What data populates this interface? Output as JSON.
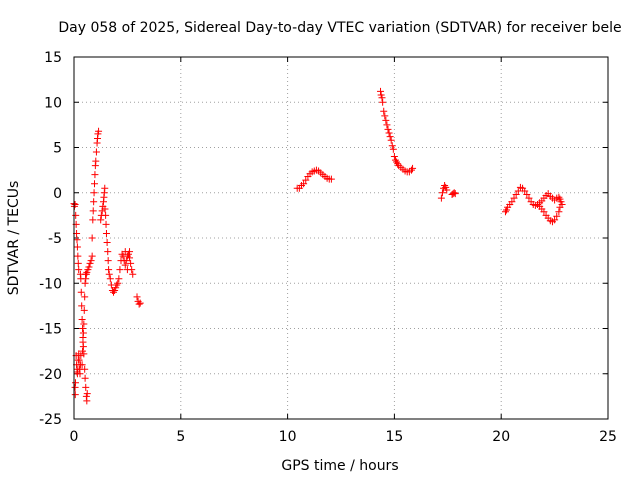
{
  "chart_data": {
    "type": "scatter",
    "title": "Day 058 of 2025, Sidereal Day-to-day VTEC variation (SDTVAR) for receiver bele",
    "xlabel": "GPS time / hours",
    "ylabel": "SDTVAR / TECUs",
    "xlim": [
      0,
      25
    ],
    "ylim": [
      -25,
      15
    ],
    "x_ticks": [
      0,
      5,
      10,
      15,
      20,
      25
    ],
    "y_ticks": [
      -25,
      -20,
      -15,
      -10,
      -5,
      0,
      5,
      10,
      15
    ],
    "grid": true,
    "marker": "+",
    "color": "#ff0000",
    "series": [
      {
        "name": "SDTVAR",
        "points": [
          [
            0.0,
            -1.2
          ],
          [
            0.02,
            -1.5
          ],
          [
            0.05,
            -1.3
          ],
          [
            0.05,
            -21.5
          ],
          [
            0.06,
            -22.3
          ],
          [
            0.07,
            -21.0
          ],
          [
            0.08,
            -2.5
          ],
          [
            0.1,
            -3.5
          ],
          [
            0.12,
            -4.5
          ],
          [
            0.14,
            -5.2
          ],
          [
            0.16,
            -6.0
          ],
          [
            0.18,
            -7.0
          ],
          [
            0.2,
            -7.8
          ],
          [
            0.22,
            -8.5
          ],
          [
            0.1,
            -18.0
          ],
          [
            0.12,
            -19.0
          ],
          [
            0.14,
            -19.8
          ],
          [
            0.16,
            -20.0
          ],
          [
            0.18,
            -19.5
          ],
          [
            0.2,
            -18.5
          ],
          [
            0.22,
            -17.8
          ],
          [
            0.24,
            -18.5
          ],
          [
            0.26,
            -19.5
          ],
          [
            0.28,
            -20.0
          ],
          [
            0.3,
            -19.0
          ],
          [
            0.32,
            -18.0
          ],
          [
            0.3,
            -9.0
          ],
          [
            0.32,
            -9.5
          ],
          [
            0.34,
            -11.0
          ],
          [
            0.36,
            -12.5
          ],
          [
            0.38,
            -14.0
          ],
          [
            0.4,
            -15.0
          ],
          [
            0.42,
            -16.0
          ],
          [
            0.44,
            -17.0
          ],
          [
            0.46,
            -17.8
          ],
          [
            0.38,
            -19.0
          ],
          [
            0.4,
            -17.5
          ],
          [
            0.42,
            -16.5
          ],
          [
            0.44,
            -15.5
          ],
          [
            0.46,
            -14.5
          ],
          [
            0.48,
            -13.0
          ],
          [
            0.5,
            -11.5
          ],
          [
            0.52,
            -10.0
          ],
          [
            0.54,
            -9.0
          ],
          [
            0.5,
            -19.5
          ],
          [
            0.52,
            -20.5
          ],
          [
            0.55,
            -21.5
          ],
          [
            0.58,
            -22.5
          ],
          [
            0.6,
            -23.0
          ],
          [
            0.62,
            -22.2
          ],
          [
            0.55,
            -9.5
          ],
          [
            0.58,
            -9.0
          ],
          [
            0.6,
            -8.8
          ],
          [
            0.65,
            -8.5
          ],
          [
            0.7,
            -8.2
          ],
          [
            0.75,
            -7.8
          ],
          [
            0.8,
            -7.5
          ],
          [
            0.85,
            -7.0
          ],
          [
            0.85,
            -5.0
          ],
          [
            0.88,
            -3.0
          ],
          [
            0.9,
            -2.0
          ],
          [
            0.92,
            -1.0
          ],
          [
            0.94,
            0.0
          ],
          [
            0.96,
            1.0
          ],
          [
            0.98,
            2.0
          ],
          [
            1.0,
            3.0
          ],
          [
            1.02,
            3.5
          ],
          [
            1.05,
            4.5
          ],
          [
            1.08,
            5.5
          ],
          [
            1.1,
            6.0
          ],
          [
            1.12,
            6.5
          ],
          [
            1.15,
            6.8
          ],
          [
            1.25,
            -3.0
          ],
          [
            1.28,
            -2.5
          ],
          [
            1.32,
            -2.0
          ],
          [
            1.35,
            -1.5
          ],
          [
            1.38,
            -1.0
          ],
          [
            1.4,
            -0.5
          ],
          [
            1.42,
            0.0
          ],
          [
            1.44,
            0.5
          ],
          [
            1.45,
            -1.8
          ],
          [
            1.48,
            -2.5
          ],
          [
            1.5,
            -3.5
          ],
          [
            1.52,
            -4.5
          ],
          [
            1.55,
            -5.5
          ],
          [
            1.58,
            -6.5
          ],
          [
            1.6,
            -7.5
          ],
          [
            1.62,
            -8.5
          ],
          [
            1.65,
            -9.0
          ],
          [
            1.7,
            -9.5
          ],
          [
            1.75,
            -10.2
          ],
          [
            1.8,
            -10.8
          ],
          [
            1.85,
            -11.0
          ],
          [
            1.9,
            -10.8
          ],
          [
            1.95,
            -10.5
          ],
          [
            2.0,
            -10.2
          ],
          [
            2.05,
            -10.0
          ],
          [
            2.1,
            -9.5
          ],
          [
            2.15,
            -8.5
          ],
          [
            2.2,
            -7.5
          ],
          [
            2.25,
            -6.8
          ],
          [
            2.3,
            -7.0
          ],
          [
            2.35,
            -7.5
          ],
          [
            2.4,
            -8.0
          ],
          [
            2.45,
            -7.5
          ],
          [
            2.5,
            -7.0
          ],
          [
            2.55,
            -6.8
          ],
          [
            2.6,
            -7.2
          ],
          [
            2.65,
            -7.8
          ],
          [
            2.7,
            -8.5
          ],
          [
            2.75,
            -9.0
          ],
          [
            2.5,
            -8.5
          ],
          [
            2.4,
            -6.5
          ],
          [
            2.6,
            -6.5
          ],
          [
            2.95,
            -11.5
          ],
          [
            3.0,
            -12.0
          ],
          [
            3.05,
            -12.3
          ],
          [
            3.1,
            -12.2
          ],
          [
            10.45,
            0.5
          ],
          [
            10.55,
            0.5
          ],
          [
            10.65,
            0.8
          ],
          [
            10.75,
            1.0
          ],
          [
            10.85,
            1.4
          ],
          [
            10.95,
            1.8
          ],
          [
            11.05,
            2.1
          ],
          [
            11.15,
            2.3
          ],
          [
            11.25,
            2.4
          ],
          [
            11.35,
            2.5
          ],
          [
            11.45,
            2.4
          ],
          [
            11.55,
            2.2
          ],
          [
            11.65,
            2.0
          ],
          [
            11.75,
            1.8
          ],
          [
            11.85,
            1.6
          ],
          [
            11.95,
            1.5
          ],
          [
            12.05,
            1.5
          ],
          [
            14.35,
            11.2
          ],
          [
            14.38,
            10.8
          ],
          [
            14.42,
            10.5
          ],
          [
            14.45,
            10.0
          ],
          [
            14.5,
            9.0
          ],
          [
            14.55,
            8.5
          ],
          [
            14.6,
            8.0
          ],
          [
            14.65,
            7.5
          ],
          [
            14.7,
            7.0
          ],
          [
            14.75,
            6.6
          ],
          [
            14.8,
            6.2
          ],
          [
            14.85,
            5.8
          ],
          [
            14.9,
            5.2
          ],
          [
            14.95,
            4.8
          ],
          [
            15.0,
            4.0
          ],
          [
            15.05,
            3.6
          ],
          [
            15.1,
            3.4
          ],
          [
            15.15,
            3.2
          ],
          [
            15.2,
            3.0
          ],
          [
            15.3,
            2.8
          ],
          [
            15.4,
            2.6
          ],
          [
            15.5,
            2.4
          ],
          [
            15.6,
            2.3
          ],
          [
            15.7,
            2.3
          ],
          [
            15.8,
            2.5
          ],
          [
            15.85,
            2.7
          ],
          [
            17.2,
            -0.6
          ],
          [
            17.25,
            0.0
          ],
          [
            17.3,
            0.5
          ],
          [
            17.35,
            0.8
          ],
          [
            17.4,
            0.6
          ],
          [
            17.45,
            0.3
          ],
          [
            17.7,
            -0.2
          ],
          [
            17.75,
            -0.1
          ],
          [
            17.8,
            0.0
          ],
          [
            17.85,
            -0.1
          ],
          [
            20.2,
            -2.1
          ],
          [
            20.25,
            -1.9
          ],
          [
            20.3,
            -1.6
          ],
          [
            20.4,
            -1.3
          ],
          [
            20.5,
            -1.0
          ],
          [
            20.6,
            -0.6
          ],
          [
            20.7,
            -0.2
          ],
          [
            20.8,
            0.2
          ],
          [
            20.9,
            0.6
          ],
          [
            21.0,
            0.5
          ],
          [
            21.1,
            0.2
          ],
          [
            21.2,
            -0.2
          ],
          [
            21.3,
            -0.6
          ],
          [
            21.4,
            -1.0
          ],
          [
            21.5,
            -1.3
          ],
          [
            21.6,
            -1.4
          ],
          [
            21.7,
            -1.3
          ],
          [
            21.8,
            -1.1
          ],
          [
            21.9,
            -0.9
          ],
          [
            22.0,
            -0.6
          ],
          [
            22.1,
            -0.3
          ],
          [
            22.2,
            -0.1
          ],
          [
            22.3,
            -0.4
          ],
          [
            22.4,
            -0.6
          ],
          [
            22.5,
            -0.8
          ],
          [
            22.6,
            -0.6
          ],
          [
            22.7,
            -0.5
          ],
          [
            22.75,
            -0.7
          ],
          [
            22.8,
            -1.0
          ],
          [
            22.85,
            -1.3
          ],
          [
            22.1,
            -2.5
          ],
          [
            22.2,
            -2.8
          ],
          [
            22.3,
            -3.1
          ],
          [
            22.4,
            -3.2
          ],
          [
            22.5,
            -3.0
          ],
          [
            22.6,
            -2.6
          ],
          [
            22.7,
            -2.1
          ],
          [
            22.75,
            -1.6
          ],
          [
            21.9,
            -1.8
          ],
          [
            22.0,
            -2.1
          ],
          [
            21.8,
            -1.5
          ]
        ]
      }
    ]
  }
}
